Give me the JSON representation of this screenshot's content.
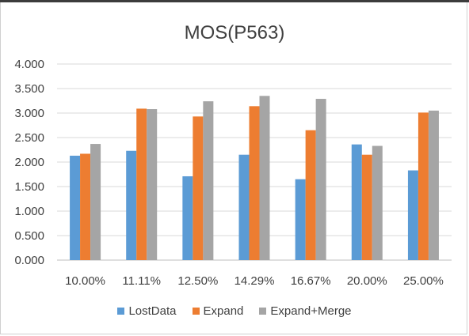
{
  "chart_data": {
    "type": "bar",
    "title": "MOS(P563)",
    "xlabel": "",
    "ylabel": "",
    "categories": [
      "10.00%",
      "11.11%",
      "12.50%",
      "14.29%",
      "16.67%",
      "20.00%",
      "25.00%"
    ],
    "series": [
      {
        "name": "LostData",
        "color": "#5b9bd5",
        "values": [
          2.13,
          2.23,
          1.71,
          2.15,
          1.65,
          2.36,
          1.83
        ]
      },
      {
        "name": "Expand",
        "color": "#ed7d31",
        "values": [
          2.17,
          3.09,
          2.93,
          3.14,
          2.65,
          2.15,
          3.01
        ]
      },
      {
        "name": "Expand+Merge",
        "color": "#a5a5a5",
        "values": [
          2.37,
          3.08,
          3.24,
          3.35,
          3.29,
          2.33,
          3.05
        ]
      }
    ],
    "ylim": [
      0,
      4
    ],
    "yticks": [
      "0.000",
      "0.500",
      "1.000",
      "1.500",
      "2.000",
      "2.500",
      "3.000",
      "3.500",
      "4.000"
    ],
    "grid": true,
    "legend_position": "bottom"
  }
}
